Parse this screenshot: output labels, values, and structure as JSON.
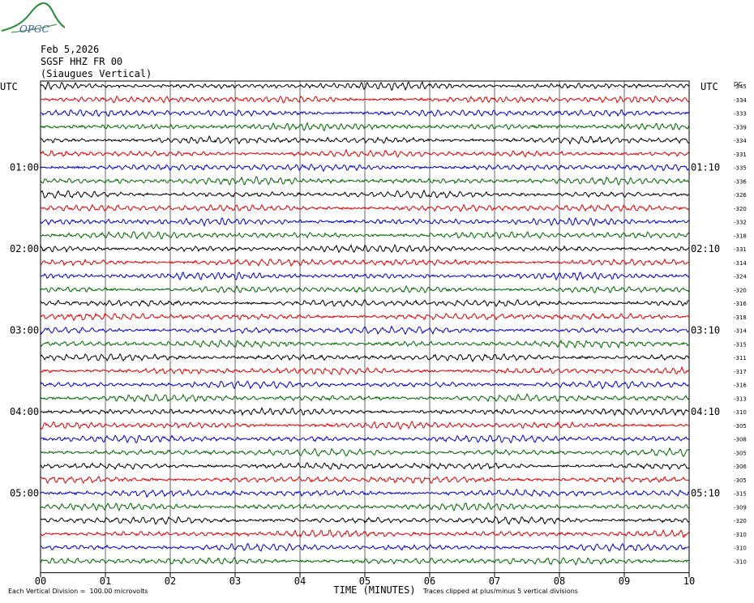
{
  "logo": {
    "text": "OPGC",
    "icon": "volcano-logo-icon",
    "color": "#2a8a3a",
    "text_color": "#3a5aa0"
  },
  "header": {
    "date": "Feb 5,2026",
    "station": "SGSF HHZ FR 00",
    "location": "(Siaugues Vertical)"
  },
  "chart_data": {
    "type": "line",
    "title": "",
    "xlabel": "TIME (MINUTES)",
    "ylabel": "",
    "xlim": [
      0,
      10
    ],
    "x_ticks": [
      "00",
      "01",
      "02",
      "03",
      "04",
      "05",
      "06",
      "07",
      "08",
      "09",
      "10"
    ],
    "left_axis_label": "UTC",
    "right_axis_label": "UTC",
    "dc_label": "DC",
    "left_hour_labels": [
      {
        "trace": 6,
        "label": "01:00"
      },
      {
        "trace": 12,
        "label": "02:00"
      },
      {
        "trace": 18,
        "label": "03:00"
      },
      {
        "trace": 24,
        "label": "04:00"
      },
      {
        "trace": 30,
        "label": "05:00"
      }
    ],
    "right_time_labels": [
      {
        "trace": 6,
        "label": "01:10"
      },
      {
        "trace": 12,
        "label": "02:10"
      },
      {
        "trace": 18,
        "label": "03:10"
      },
      {
        "trace": 24,
        "label": "04:10"
      },
      {
        "trace": 30,
        "label": "05:10"
      }
    ],
    "trace_colors": [
      "#000000",
      "#dd0000",
      "#0000cc",
      "#006600"
    ],
    "dc_offsets": [
      "-345",
      "-334",
      "-333",
      "-339",
      "-334",
      "-331",
      "-335",
      "-336",
      "-326",
      "-320",
      "-332",
      "-318",
      "-331",
      "-314",
      "-324",
      "-320",
      "-316",
      "-318",
      "-314",
      "-315",
      "-311",
      "-317",
      "-316",
      "-313",
      "-310",
      "-305",
      "-308",
      "-305",
      "-306",
      "-305",
      "-315",
      "-309",
      "-320",
      "-310",
      "-310",
      "-310"
    ]
  },
  "footer": {
    "scale_note": "Each Vertical Division =  100.00 microvolts",
    "clip_note": "Traces clipped at plus/minus 5 vertical divisions"
  }
}
